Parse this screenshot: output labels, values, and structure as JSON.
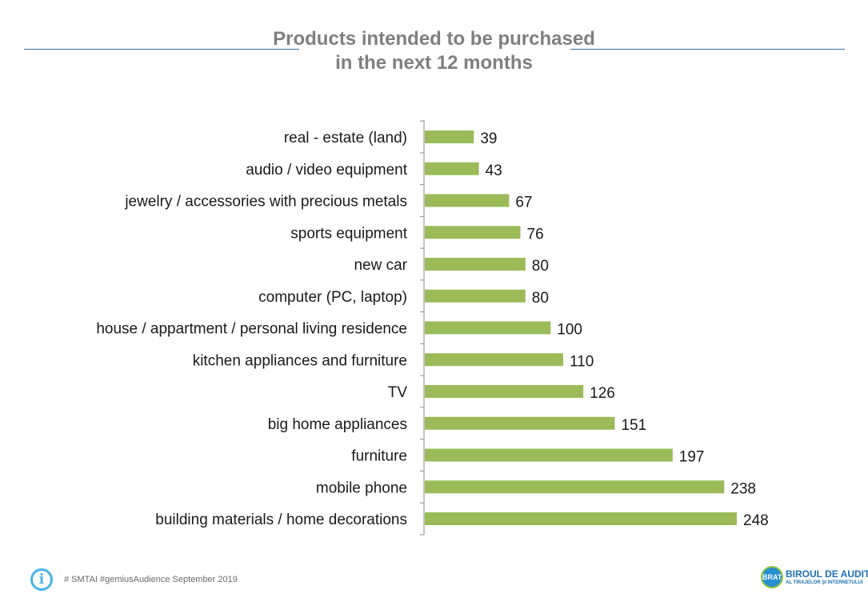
{
  "header": {
    "title_line1": "Products intended to be purchased",
    "title_line2": "in the next 12 months"
  },
  "chart_data": {
    "type": "bar",
    "orientation": "horizontal",
    "title": "Products intended to be purchased in the next 12 months",
    "categories": [
      "real - estate (land)",
      "audio / video equipment",
      "jewelry / accessories with precious metals",
      "sports equipment",
      "new car",
      "computer (PC, laptop)",
      "house / appartment / personal living residence",
      "kitchen appliances and furniture",
      "TV",
      "big home appliances",
      "furniture",
      "mobile phone",
      "building materials / home decorations"
    ],
    "values": [
      39,
      43,
      67,
      76,
      80,
      80,
      100,
      110,
      126,
      151,
      197,
      238,
      248
    ],
    "data_labels": true,
    "bar_color": "#9bbb59",
    "grid": false,
    "legend": "none"
  },
  "footer": {
    "source": "# SMTAI #gemiusAudience September  2019",
    "info_icon": "info-icon"
  },
  "logo": {
    "badge": "BRAT",
    "main": "BIROUL DE AUDIT",
    "sub": "AL TIRAJELOR ŞI INTERNETULUI"
  }
}
